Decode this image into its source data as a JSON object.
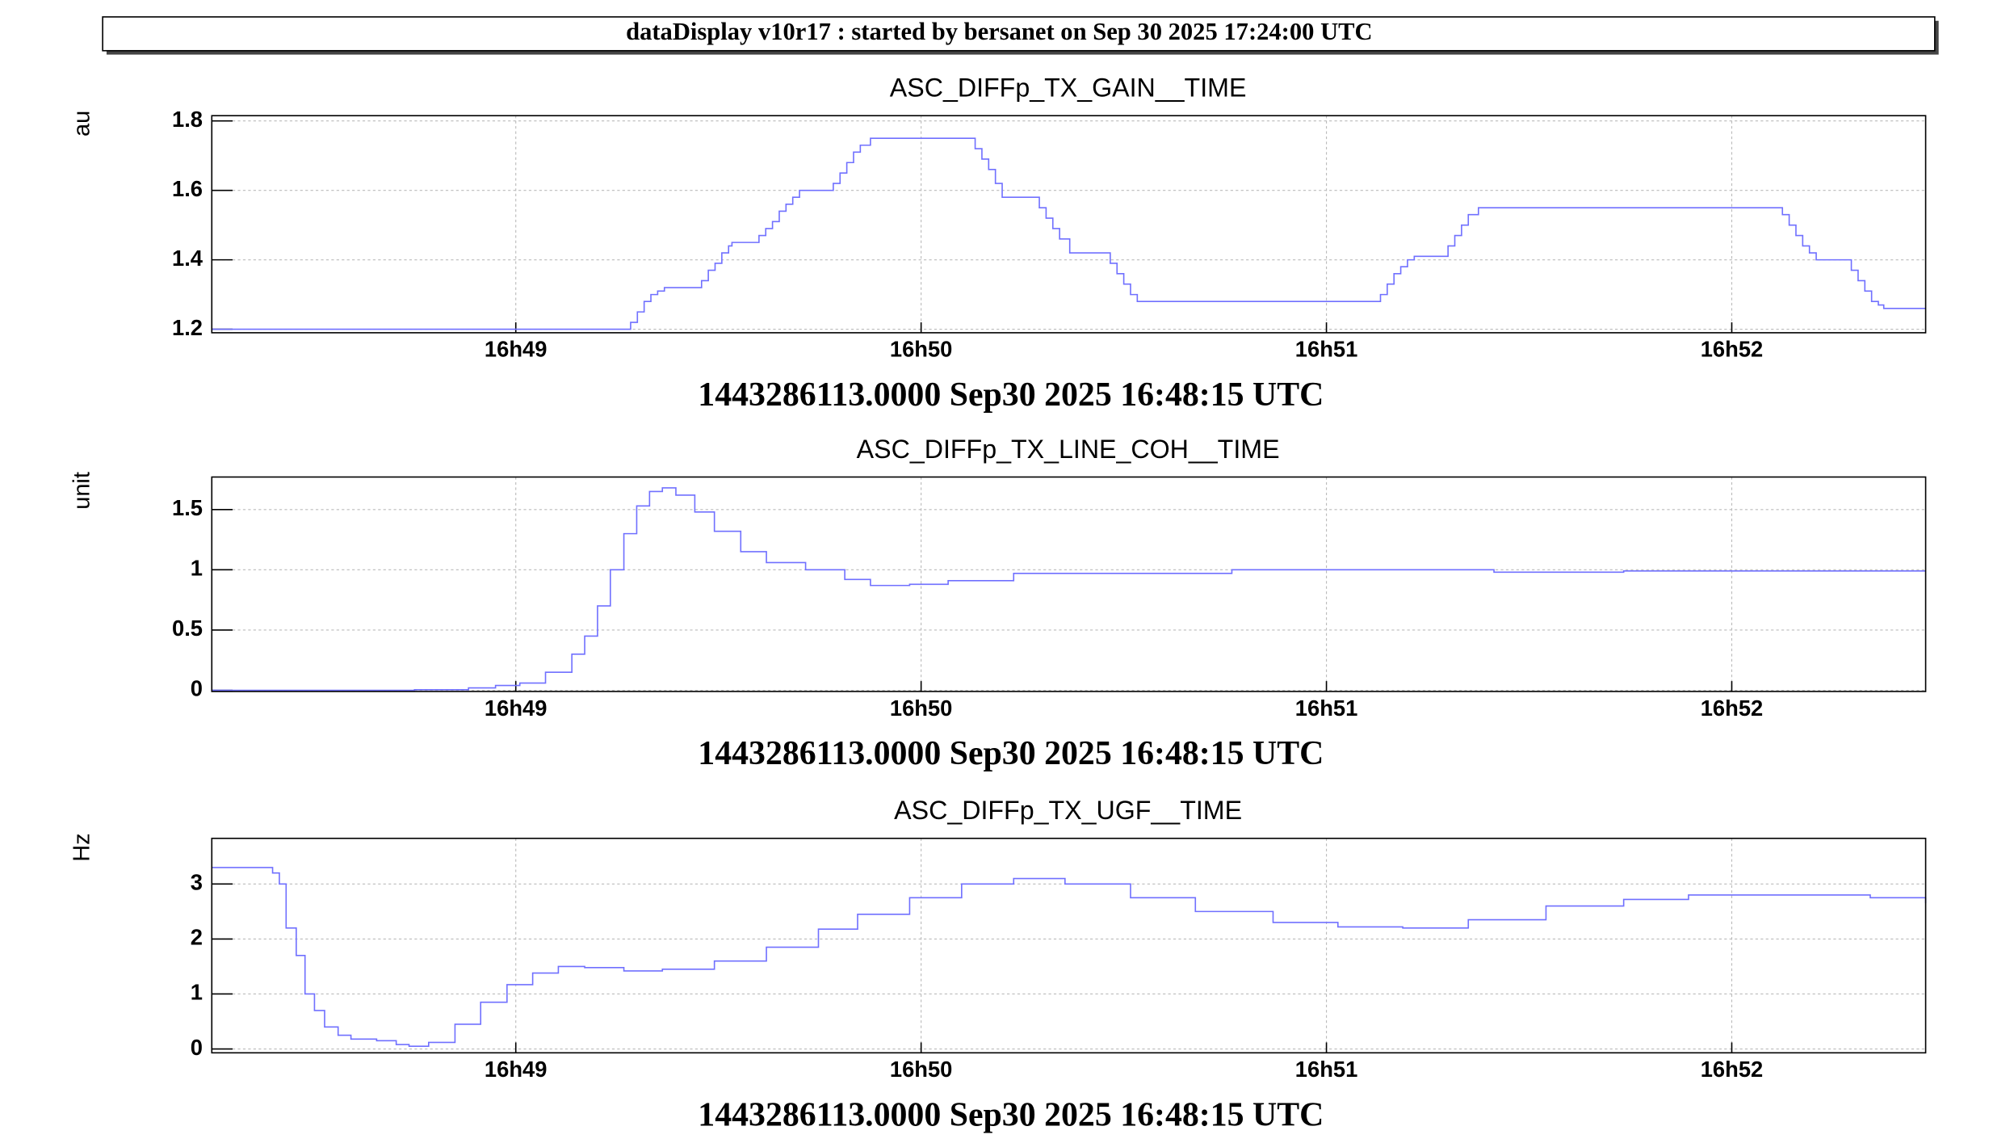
{
  "header": {
    "title": "dataDisplay v10r17 : started by bersanet on Sep 30 2025 17:24:00 UTC"
  },
  "chart_data": [
    {
      "type": "line",
      "drawstyle": "steps-post",
      "title": "ASC_DIFFp_TX_GAIN__TIME",
      "y_label": "au",
      "x_label": "1443286113.0000 Sep30 2025 16:48:15 UTC",
      "color": "#7070ff",
      "grid": true,
      "xlim": [
        0,
        253.7
      ],
      "xticks": [
        {
          "value": 45,
          "label": "16h49"
        },
        {
          "value": 105,
          "label": "16h50"
        },
        {
          "value": 165,
          "label": "16h51"
        },
        {
          "value": 225,
          "label": "16h52"
        }
      ],
      "ylim": [
        1.19,
        1.815
      ],
      "yticks": [
        1.2,
        1.4,
        1.6,
        1.8
      ],
      "x": [
        0,
        62,
        63,
        64,
        65,
        66,
        67,
        72.5,
        73.5,
        74.5,
        75.5,
        76.5,
        77,
        81,
        82,
        83,
        84,
        85,
        86,
        87,
        92,
        93,
        94,
        95,
        96,
        97.5,
        113,
        114,
        115,
        116,
        117,
        122.5,
        123.5,
        124.5,
        125.5,
        127,
        133,
        134,
        135,
        136,
        137,
        173,
        174,
        175,
        176,
        177,
        178,
        183,
        184,
        185,
        186,
        187.5,
        232.5,
        233.5,
        234.5,
        235.5,
        236.5,
        237.5,
        242.7,
        243.7,
        244.7,
        245.7,
        246.7,
        247.5,
        253.7
      ],
      "values": [
        1.2,
        1.22,
        1.25,
        1.28,
        1.3,
        1.31,
        1.32,
        1.34,
        1.37,
        1.39,
        1.42,
        1.44,
        1.45,
        1.47,
        1.49,
        1.51,
        1.54,
        1.56,
        1.58,
        1.6,
        1.62,
        1.65,
        1.68,
        1.71,
        1.73,
        1.75,
        1.72,
        1.69,
        1.66,
        1.62,
        1.58,
        1.55,
        1.52,
        1.49,
        1.46,
        1.42,
        1.39,
        1.36,
        1.33,
        1.3,
        1.28,
        1.3,
        1.33,
        1.36,
        1.38,
        1.4,
        1.41,
        1.44,
        1.47,
        1.5,
        1.53,
        1.55,
        1.53,
        1.5,
        1.47,
        1.44,
        1.42,
        1.4,
        1.37,
        1.34,
        1.31,
        1.28,
        1.27,
        1.26,
        1.26
      ]
    },
    {
      "type": "line",
      "drawstyle": "steps-post",
      "title": "ASC_DIFFp_TX_LINE_COH__TIME",
      "y_label": "unit",
      "x_label": "1443286113.0000 Sep30 2025 16:48:15 UTC",
      "color": "#7070ff",
      "grid": true,
      "xlim": [
        0,
        253.7
      ],
      "xticks": [
        {
          "value": 45,
          "label": "16h49"
        },
        {
          "value": 105,
          "label": "16h50"
        },
        {
          "value": 165,
          "label": "16h51"
        },
        {
          "value": 225,
          "label": "16h52"
        }
      ],
      "ylim": [
        -0.01,
        1.77
      ],
      "yticks": [
        0,
        0.5,
        1,
        1.5
      ],
      "x": [
        0,
        20,
        30,
        38,
        42,
        45.6,
        49.4,
        53.3,
        55.2,
        57.1,
        59,
        61,
        62.9,
        64.8,
        66.7,
        68.7,
        71.5,
        74.4,
        78.3,
        82.1,
        87.9,
        93.7,
        97.5,
        103.3,
        109,
        118.7,
        132,
        151,
        170.6,
        189.8,
        209,
        253.7
      ],
      "values": [
        0,
        0,
        0.005,
        0.02,
        0.04,
        0.06,
        0.15,
        0.3,
        0.45,
        0.7,
        1.0,
        1.3,
        1.53,
        1.65,
        1.68,
        1.62,
        1.48,
        1.32,
        1.15,
        1.06,
        1.0,
        0.92,
        0.87,
        0.88,
        0.91,
        0.97,
        0.97,
        1.0,
        1.0,
        0.98,
        0.99,
        0.99
      ]
    },
    {
      "type": "line",
      "drawstyle": "steps-post",
      "title": "ASC_DIFFp_TX_UGF__TIME",
      "y_label": "Hz",
      "x_label": "1443286113.0000 Sep30 2025 16:48:15 UTC",
      "color": "#7070ff",
      "grid": true,
      "xlim": [
        0,
        253.7
      ],
      "xticks": [
        {
          "value": 45,
          "label": "16h49"
        },
        {
          "value": 105,
          "label": "16h50"
        },
        {
          "value": 165,
          "label": "16h51"
        },
        {
          "value": 225,
          "label": "16h52"
        }
      ],
      "ylim": [
        -0.07,
        3.83
      ],
      "yticks": [
        0,
        1,
        2,
        3
      ],
      "x": [
        0,
        9,
        10,
        11,
        12.5,
        13.8,
        15.2,
        16.7,
        18.7,
        20.6,
        24.4,
        27.3,
        29.2,
        32.1,
        36,
        39.8,
        43.7,
        47.5,
        51.3,
        55.2,
        61,
        66.7,
        74.4,
        82.1,
        89.8,
        95.6,
        103.3,
        111,
        118.7,
        126.3,
        136,
        145.6,
        157.1,
        166.7,
        176.3,
        186,
        197.5,
        209,
        218.6,
        235.9,
        245.5,
        253.7
      ],
      "values": [
        3.3,
        3.2,
        3.0,
        2.2,
        1.7,
        1.0,
        0.7,
        0.4,
        0.25,
        0.18,
        0.15,
        0.08,
        0.05,
        0.12,
        0.45,
        0.85,
        1.17,
        1.38,
        1.5,
        1.48,
        1.42,
        1.45,
        1.6,
        1.85,
        2.18,
        2.45,
        2.75,
        3.0,
        3.1,
        3.0,
        2.75,
        2.5,
        2.3,
        2.22,
        2.2,
        2.35,
        2.6,
        2.72,
        2.8,
        2.8,
        2.75,
        2.65
      ]
    }
  ]
}
